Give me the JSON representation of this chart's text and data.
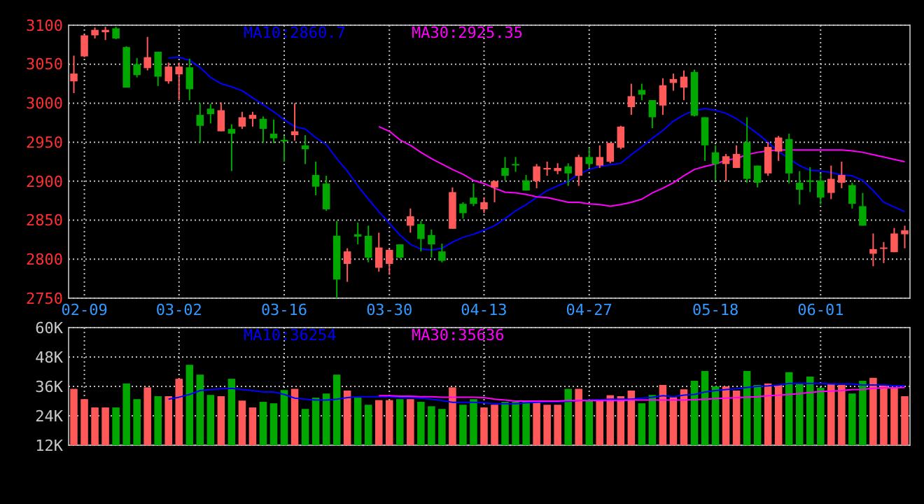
{
  "chart_data": [
    {
      "type": "candlestick",
      "categories": [
        null,
        "02-09",
        null,
        null,
        null,
        null,
        null,
        null,
        null,
        null,
        "03-02",
        null,
        null,
        null,
        null,
        null,
        null,
        null,
        null,
        null,
        "03-16",
        null,
        null,
        null,
        null,
        null,
        null,
        null,
        null,
        null,
        "03-30",
        null,
        null,
        null,
        null,
        null,
        null,
        null,
        null,
        "04-13",
        null,
        null,
        null,
        null,
        null,
        null,
        null,
        null,
        null,
        "04-27",
        null,
        null,
        null,
        null,
        null,
        null,
        null,
        null,
        null,
        null,
        null,
        "05-18",
        null,
        null,
        null,
        null,
        null,
        null,
        null,
        null,
        null,
        "06-01",
        null,
        null,
        null,
        null,
        null,
        null,
        null,
        null
      ],
      "ohlc": [
        [
          3028,
          3061,
          3013,
          3038
        ],
        [
          3060,
          3088,
          3059,
          3087
        ],
        [
          3087,
          3097,
          3083,
          3094
        ],
        [
          3091,
          3098,
          3081,
          3094
        ],
        [
          3096,
          3098,
          3082,
          3083
        ],
        [
          3072,
          3073,
          3020,
          3020
        ],
        [
          3050,
          3058,
          3033,
          3036
        ],
        [
          3045,
          3085,
          3042,
          3059
        ],
        [
          3066,
          3066,
          3022,
          3034
        ],
        [
          3028,
          3052,
          3025,
          3047
        ],
        [
          3037,
          3052,
          3004,
          3047
        ],
        [
          3046,
          3057,
          3004,
          3018
        ],
        [
          2985,
          3000,
          2949,
          2971
        ],
        [
          2993,
          2999,
          2974,
          2986
        ],
        [
          2964,
          3001,
          2964,
          2991
        ],
        [
          2967,
          2973,
          2913,
          2961
        ],
        [
          2970,
          2989,
          2967,
          2982
        ],
        [
          2980,
          2989,
          2970,
          2985
        ],
        [
          2980,
          2983,
          2949,
          2967
        ],
        [
          2961,
          2979,
          2949,
          2955
        ],
        [
          2953,
          2958,
          2925,
          2951
        ],
        [
          2959,
          3000,
          2952,
          2964
        ],
        [
          2946,
          2959,
          2922,
          2941
        ],
        [
          2908,
          2925,
          2882,
          2893
        ],
        [
          2897,
          2907,
          2862,
          2864
        ],
        [
          2830,
          2849,
          2750,
          2774
        ],
        [
          2794,
          2814,
          2771,
          2810
        ],
        [
          2832,
          2847,
          2819,
          2829
        ],
        [
          2830,
          2843,
          2796,
          2802
        ],
        [
          2789,
          2834,
          2784,
          2815
        ],
        [
          2794,
          2813,
          2780,
          2812
        ],
        [
          2819,
          2819,
          2801,
          2802
        ],
        [
          2843,
          2865,
          2834,
          2855
        ],
        [
          2845,
          2849,
          2810,
          2826
        ],
        [
          2831,
          2838,
          2802,
          2819
        ],
        [
          2810,
          2820,
          2796,
          2798
        ],
        [
          2839,
          2892,
          2839,
          2886
        ],
        [
          2871,
          2873,
          2852,
          2859
        ],
        [
          2879,
          2897,
          2868,
          2871
        ],
        [
          2864,
          2879,
          2859,
          2873
        ],
        [
          2892,
          2901,
          2873,
          2900
        ],
        [
          2917,
          2931,
          2901,
          2907
        ],
        [
          2922,
          2931,
          2912,
          2921
        ],
        [
          2901,
          2908,
          2888,
          2888
        ],
        [
          2900,
          2922,
          2891,
          2919
        ],
        [
          2915,
          2925,
          2907,
          2917
        ],
        [
          2913,
          2923,
          2909,
          2917
        ],
        [
          2919,
          2923,
          2894,
          2910
        ],
        [
          2907,
          2934,
          2894,
          2931
        ],
        [
          2931,
          2943,
          2917,
          2922
        ],
        [
          2920,
          2946,
          2917,
          2931
        ],
        [
          2925,
          2949,
          2923,
          2949
        ],
        [
          2943,
          2971,
          2941,
          2970
        ],
        [
          2995,
          3025,
          2985,
          3009
        ],
        [
          3017,
          3025,
          3004,
          3011
        ],
        [
          3004,
          3004,
          2968,
          2982
        ],
        [
          2997,
          3032,
          2985,
          3023
        ],
        [
          3026,
          3038,
          3016,
          3031
        ],
        [
          3020,
          3042,
          3004,
          3034
        ],
        [
          3040,
          3043,
          2983,
          2984
        ],
        [
          2982,
          2982,
          2926,
          2946
        ],
        [
          2937,
          2946,
          2901,
          2922
        ],
        [
          2922,
          2935,
          2900,
          2932
        ],
        [
          2917,
          2946,
          2917,
          2935
        ],
        [
          2950,
          2982,
          2898,
          2903
        ],
        [
          2920,
          2920,
          2892,
          2898
        ],
        [
          2910,
          2950,
          2907,
          2944
        ],
        [
          2938,
          2958,
          2926,
          2956
        ],
        [
          2954,
          2961,
          2897,
          2910
        ],
        [
          2898,
          2913,
          2870,
          2889
        ],
        [
          2901,
          2918,
          2886,
          2900
        ],
        [
          2901,
          2910,
          2870,
          2879
        ],
        [
          2885,
          2920,
          2877,
          2903
        ],
        [
          2898,
          2925,
          2891,
          2908
        ],
        [
          2895,
          2898,
          2865,
          2871
        ],
        [
          2868,
          2885,
          2843,
          2843
        ],
        [
          2807,
          2833,
          2791,
          2813
        ],
        [
          2814,
          2822,
          2795,
          2815
        ],
        [
          2809,
          2840,
          2809,
          2833
        ],
        [
          2832,
          2843,
          2814,
          2837
        ]
      ],
      "colors": [
        "#ff5959",
        "#ff5959",
        "#ff5959",
        "#ff5959",
        "#00a800",
        "#00a800",
        "#00a800",
        "#ff5959",
        "#00a800",
        "#ff5959",
        "#ff5959",
        "#00a800",
        "#00a800",
        "#00a800",
        "#ff5959",
        "#00a800",
        "#ff5959",
        "#ff5959",
        "#00a800",
        "#00a800",
        "#00a800",
        "#ff5959",
        "#00a800",
        "#00a800",
        "#00a800",
        "#00a800",
        "#ff5959",
        "#00a800",
        "#00a800",
        "#ff5959",
        "#ff5959",
        "#00a800",
        "#ff5959",
        "#00a800",
        "#00a800",
        "#00a800",
        "#ff5959",
        "#00a800",
        "#00a800",
        "#ff5959",
        "#ff5959",
        "#00a800",
        "#00a800",
        "#00a800",
        "#ff5959",
        "#ff5959",
        "#ff5959",
        "#00a800",
        "#ff5959",
        "#00a800",
        "#ff5959",
        "#ff5959",
        "#ff5959",
        "#ff5959",
        "#00a800",
        "#00a800",
        "#ff5959",
        "#ff5959",
        "#ff5959",
        "#00a800",
        "#00a800",
        "#00a800",
        "#ff5959",
        "#ff5959",
        "#00a800",
        "#00a800",
        "#ff5959",
        "#ff5959",
        "#00a800",
        "#00a800",
        "#00a800",
        "#00a800",
        "#ff5959",
        "#ff5959",
        "#00a800",
        "#00a800",
        "#ff5959",
        "#ff5959",
        "#ff5959",
        "#ff5959"
      ],
      "series": [
        {
          "type": "line",
          "name": "MA10:2860.7",
          "color": "#0000ff",
          "values": [
            null,
            null,
            null,
            null,
            null,
            null,
            null,
            null,
            null,
            3058,
            3059,
            3055,
            3046,
            3033,
            3025,
            3021,
            3016,
            3007,
            2998,
            2989,
            2979,
            2970,
            2967,
            2956,
            2947,
            2929,
            2913,
            2894,
            2877,
            2861,
            2846,
            2831,
            2819,
            2813,
            2812,
            2814,
            2822,
            2828,
            2832,
            2837,
            2843,
            2852,
            2862,
            2870,
            2879,
            2888,
            2894,
            2900,
            2909,
            2915,
            2919,
            2921,
            2923,
            2934,
            2944,
            2955,
            2965,
            2977,
            2985,
            2991,
            2993,
            2991,
            2987,
            2980,
            2971,
            2961,
            2950,
            2938,
            2929,
            2920,
            2914,
            2913,
            2911,
            2908,
            2907,
            2901,
            2888,
            2873,
            2867,
            2861
          ]
        },
        {
          "type": "line",
          "name": "MA30:2925.35",
          "color": "#ff00ff",
          "values": [
            null,
            null,
            null,
            null,
            null,
            null,
            null,
            null,
            null,
            null,
            null,
            null,
            null,
            null,
            null,
            null,
            null,
            null,
            null,
            null,
            null,
            null,
            null,
            null,
            null,
            null,
            null,
            null,
            null,
            2970,
            2964,
            2953,
            2946,
            2937,
            2929,
            2922,
            2915,
            2909,
            2901,
            2897,
            2891,
            2886,
            2885,
            2883,
            2880,
            2879,
            2876,
            2873,
            2873,
            2871,
            2870,
            2868,
            2870,
            2873,
            2877,
            2885,
            2891,
            2898,
            2907,
            2915,
            2919,
            2922,
            2927,
            2929,
            2934,
            2937,
            2939,
            2940,
            2940,
            2940,
            2940,
            2940,
            2940,
            2940,
            2939,
            2937,
            2934,
            2931,
            2928,
            2925
          ]
        }
      ],
      "ylim": [
        2750,
        3100
      ],
      "yticks": [
        2750,
        2800,
        2850,
        2900,
        2950,
        3000,
        3050,
        3100
      ],
      "grid": true,
      "legend": "top"
    },
    {
      "type": "bar",
      "categories": [
        null,
        null,
        null,
        null,
        null,
        null,
        null,
        null,
        null,
        null,
        null,
        null,
        null,
        null,
        null,
        null,
        null,
        null,
        null,
        null,
        null,
        null,
        null,
        null,
        null,
        null,
        null,
        null,
        null,
        null,
        null,
        null,
        null,
        null,
        null,
        null,
        null,
        null,
        null,
        null,
        null,
        null,
        null,
        null,
        null,
        null,
        null,
        null,
        null,
        null,
        null,
        null,
        null,
        null,
        null,
        null,
        null,
        null,
        null,
        null,
        null,
        null,
        null,
        null,
        null,
        null,
        null,
        null,
        null,
        null,
        null,
        null,
        null,
        null,
        null,
        null,
        null,
        null,
        null,
        null
      ],
      "series": [
        {
          "type": "bar",
          "values": [
            35000,
            30800,
            27400,
            27400,
            27400,
            37200,
            30800,
            35600,
            32000,
            32000,
            39100,
            44800,
            40800,
            32500,
            32000,
            39100,
            30200,
            27400,
            29700,
            29100,
            34500,
            35000,
            26800,
            31400,
            33100,
            40800,
            34300,
            31400,
            28500,
            30400,
            30400,
            30800,
            30800,
            29700,
            27900,
            26800,
            35600,
            28500,
            30800,
            27400,
            28500,
            29700,
            29700,
            29700,
            29700,
            28500,
            28500,
            35000,
            35000,
            30200,
            30800,
            32400,
            32000,
            34300,
            29100,
            32500,
            36600,
            31600,
            34800,
            38300,
            42300,
            36000,
            36000,
            34300,
            42300,
            36600,
            37200,
            36600,
            41800,
            37200,
            40000,
            35400,
            37200,
            36600,
            33100,
            38300,
            39500,
            36600,
            35400,
            32000
          ],
          "colors": [
            "#ff5959",
            "#ff5959",
            "#ff5959",
            "#ff5959",
            "#00a800",
            "#00a800",
            "#00a800",
            "#ff5959",
            "#00a800",
            "#ff5959",
            "#ff5959",
            "#00a800",
            "#00a800",
            "#00a800",
            "#ff5959",
            "#00a800",
            "#ff5959",
            "#ff5959",
            "#00a800",
            "#00a800",
            "#00a800",
            "#ff5959",
            "#00a800",
            "#00a800",
            "#00a800",
            "#00a800",
            "#ff5959",
            "#00a800",
            "#00a800",
            "#ff5959",
            "#ff5959",
            "#00a800",
            "#ff5959",
            "#00a800",
            "#00a800",
            "#00a800",
            "#ff5959",
            "#00a800",
            "#00a800",
            "#ff5959",
            "#ff5959",
            "#00a800",
            "#00a800",
            "#00a800",
            "#ff5959",
            "#ff5959",
            "#ff5959",
            "#00a800",
            "#ff5959",
            "#00a800",
            "#ff5959",
            "#ff5959",
            "#ff5959",
            "#ff5959",
            "#00a800",
            "#00a800",
            "#ff5959",
            "#ff5959",
            "#ff5959",
            "#00a800",
            "#00a800",
            "#00a800",
            "#ff5959",
            "#ff5959",
            "#00a800",
            "#00a800",
            "#ff5959",
            "#ff5959",
            "#00a800",
            "#00a800",
            "#00a800",
            "#00a800",
            "#ff5959",
            "#ff5959",
            "#00a800",
            "#00a800",
            "#ff5959",
            "#ff5959",
            "#ff5959",
            "#ff5959"
          ]
        },
        {
          "type": "line",
          "name": "MA10:36254",
          "color": "#0000ff",
          "values": [
            null,
            null,
            null,
            null,
            null,
            null,
            null,
            null,
            null,
            30800,
            31600,
            32700,
            34300,
            34700,
            35000,
            35200,
            34700,
            34300,
            33700,
            33700,
            32700,
            31200,
            30800,
            30400,
            30400,
            30800,
            31400,
            31800,
            31800,
            31800,
            31800,
            31400,
            31400,
            31200,
            30800,
            30200,
            29500,
            29500,
            29500,
            29300,
            28900,
            28900,
            28900,
            29300,
            29500,
            29700,
            29700,
            29900,
            30200,
            30400,
            30600,
            30800,
            30800,
            30800,
            31200,
            31600,
            32200,
            31800,
            32400,
            32700,
            33700,
            34300,
            34700,
            35000,
            35600,
            36000,
            36200,
            36600,
            37200,
            37200,
            37200,
            37200,
            37000,
            37000,
            37000,
            36600,
            36600,
            36600,
            36200,
            36300
          ]
        },
        {
          "type": "line",
          "name": "MA30:35636",
          "color": "#ff00ff",
          "values": [
            null,
            null,
            null,
            null,
            null,
            null,
            null,
            null,
            null,
            null,
            null,
            null,
            null,
            null,
            null,
            null,
            null,
            null,
            null,
            null,
            null,
            null,
            null,
            null,
            null,
            null,
            null,
            null,
            null,
            32200,
            32200,
            32000,
            32000,
            31800,
            31800,
            31600,
            31600,
            31600,
            31600,
            31400,
            30800,
            30400,
            30000,
            30000,
            30000,
            30000,
            30000,
            30200,
            30200,
            30200,
            30200,
            30200,
            30200,
            30400,
            30400,
            30400,
            30400,
            30400,
            30400,
            30600,
            30800,
            31000,
            31200,
            31400,
            31600,
            31800,
            32200,
            32400,
            32700,
            33100,
            33500,
            33900,
            34100,
            34300,
            34700,
            34800,
            35200,
            35400,
            35400,
            35600
          ]
        }
      ],
      "ylim": [
        12000,
        60000
      ],
      "yticks": [
        {
          "value": 12000,
          "label": "12K"
        },
        {
          "value": 24000,
          "label": "24K"
        },
        {
          "value": 36000,
          "label": "36K"
        },
        {
          "value": 48000,
          "label": "48K"
        },
        {
          "value": 60000,
          "label": "60K"
        }
      ],
      "grid": true,
      "legend": "top",
      "tick_labels": "y"
    }
  ]
}
